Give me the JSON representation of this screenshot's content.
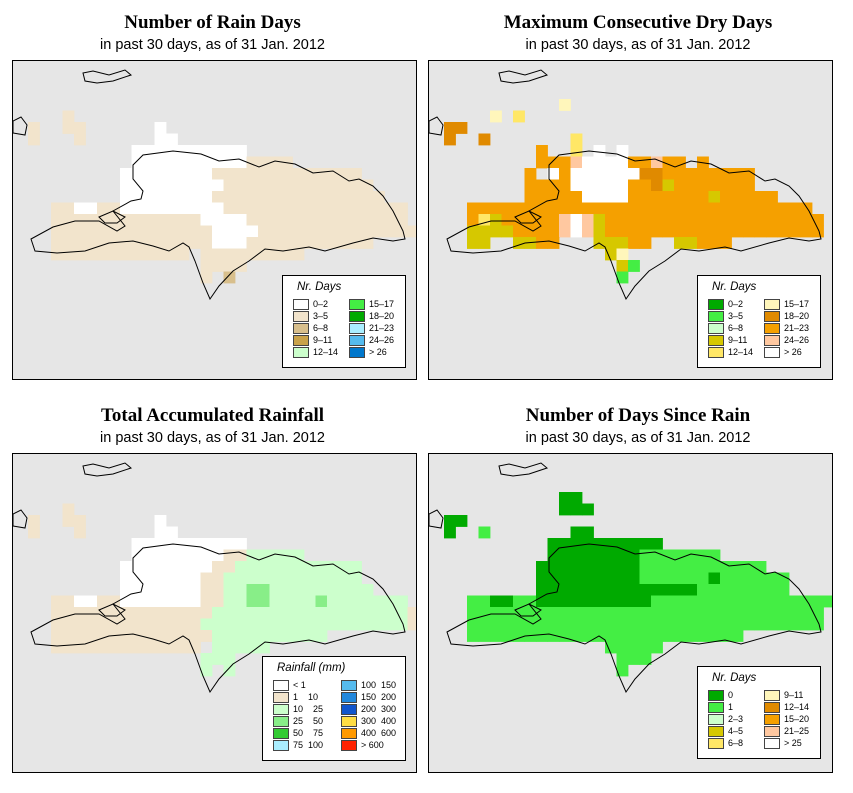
{
  "common_subtitle": "in past 30 days, as of  31 Jan. 2012",
  "panels": [
    {
      "id": "rain_days",
      "title": "Number of Rain Days",
      "subtitle": "in past 30 days, as of  31 Jan. 2012",
      "legend_title": "Nr. Days",
      "legend": [
        {
          "label": "0–2",
          "color": "#ffffff"
        },
        {
          "label": "3–5",
          "color": "#f2e4cc"
        },
        {
          "label": "6–8",
          "color": "#d8bf8c"
        },
        {
          "label": "9–11",
          "color": "#c9a24a"
        },
        {
          "label": "12–14",
          "color": "#ccffcc"
        },
        {
          "label": "15–17",
          "color": "#44ee44"
        },
        {
          "label": "18–20",
          "color": "#00aa00"
        },
        {
          "label": "21–23",
          "color": "#aaeeff"
        },
        {
          "label": "24–26",
          "color": "#55bbee"
        },
        {
          "label": "> 26",
          "color": "#0077cc"
        }
      ],
      "category_index_grid": [
        "..................................",
        "...1...............................",
        "1..11......0.......................",
        "1...1......00......................",
        ".........0000000000................",
        ".........00000000001111............",
        "........000000001111111111111......",
        "........0000000001111111111111.....",
        "........00000000111111111111111....",
        "..1100110000000001111111111111111..",
        "..1111111111111000011111111111111..",
        "..11111111111111000011111111111111.",
        "..1111111111111100011111111111.....",
        "..111111111111.111111111...........",
        "...............1111................",
        "...............1.2................."
      ]
    },
    {
      "id": "max_dry_days",
      "title": "Maximum Consecutive Dry Days",
      "subtitle": "in past 30 days, as of  31 Jan. 2012",
      "legend_title": "Nr. Days",
      "legend": [
        {
          "label": "0–2",
          "color": "#00aa00"
        },
        {
          "label": "3–5",
          "color": "#44ee44"
        },
        {
          "label": "6–8",
          "color": "#ccffcc"
        },
        {
          "label": "9–11",
          "color": "#d6c800"
        },
        {
          "label": "12–14",
          "color": "#ffe766"
        },
        {
          "label": "15–17",
          "color": "#fff6bb"
        },
        {
          "label": "18–20",
          "color": "#e08a00"
        },
        {
          "label": "21–23",
          "color": "#f5a000"
        },
        {
          "label": "24–26",
          "color": "#ffc8a0"
        },
        {
          "label": "> 26",
          "color": "#ffffff"
        }
      ],
      "category_index_grid": [
        "..........5........................",
        "....5.4............................",
        "66.................................",
        "6..6.......4.......................",
        "........7..4.9.9...................",
        "........7778999977877.7.............",
        ".......7.979999996677777777.........",
        ".......77779999977637777777........",
        ".......7777799997777777377777......",
        "..777777777777777777777777777777...",
        "..7437777789837777777777777777777..",
        "..3333777789837777777777777777777..",
        "..33..3377...33377..33777..........",
        "..............35...................",
        "...............31..................",
        "...............1..................."
      ]
    },
    {
      "id": "total_rainfall",
      "title": "Total Accumulated Rainfall",
      "subtitle": "in past 30 days, as of  31 Jan. 2012",
      "legend_title": "Rainfall (mm)",
      "legend": [
        {
          "label": "< 1",
          "color": "#ffffff"
        },
        {
          "label": "1    10",
          "color": "#f2e4cc"
        },
        {
          "label": "10    25",
          "color": "#ccffcc"
        },
        {
          "label": "25    50",
          "color": "#88ee88"
        },
        {
          "label": "50    75",
          "color": "#33cc33"
        },
        {
          "label": "75  100",
          "color": "#aaeeff"
        },
        {
          "label": "100  150",
          "color": "#55bbee"
        },
        {
          "label": "150  200",
          "color": "#2288dd"
        },
        {
          "label": "200  300",
          "color": "#1155cc"
        },
        {
          "label": "300  400",
          "color": "#ffdd44"
        },
        {
          "label": "400  600",
          "color": "#ff9900"
        },
        {
          "label": "> 600",
          "color": "#ff2200"
        }
      ],
      "category_index_grid": [
        "....................................",
        "...1...............................",
        "1..11......0.......................",
        "1...1......00......................",
        ".........0000000000................",
        ".........000000001122222...........",
        "........000000001122222222222......",
        "........000000011222222222222......",
        "........0000000112233222222222.....",
        "..1100110000000112233222232222222..",
        "..11111111111111222222222222222221.",
        "..11111111111112222222222222222221.",
        "..111111111111112222222222.........",
        "..1111111111111.22222..............",
        "...............222.................",
        "...............2.2................."
      ]
    },
    {
      "id": "days_since_rain",
      "title": "Number of Days Since Rain",
      "subtitle": "in past 30 days, as of  31 Jan. 2012",
      "legend_title": "Nr. Days",
      "legend": [
        {
          "label": "0",
          "color": "#00aa00"
        },
        {
          "label": "1",
          "color": "#44ee44"
        },
        {
          "label": "2–3",
          "color": "#ccffcc"
        },
        {
          "label": "4–5",
          "color": "#d6c800"
        },
        {
          "label": "6–8",
          "color": "#ffe766"
        },
        {
          "label": "9–11",
          "color": "#fff6bb"
        },
        {
          "label": "12–14",
          "color": "#e08a00"
        },
        {
          "label": "15–20",
          "color": "#f5a000"
        },
        {
          "label": "21–25",
          "color": "#ffc8a0"
        },
        {
          "label": "> 25",
          "color": "#ffffff"
        }
      ],
      "category_index_grid": [
        "..........00.......................",
        "..........000......................",
        "00.................................",
        "0..1.......00......................",
        ".........0000000000................",
        ".........000000001111111...........",
        "........00000000011111111111.......",
        "........0000000001111110111111.....",
        "........0000000000000011111111.....",
        "..11001100000000001111111111111111.",
        "..1111111111111111111111111111111..",
        "..1111111111111111111111111111111..",
        "..111111111111111111111111.........",
        "..............11111................",
        "...............111.................",
        "...............1..................."
      ]
    }
  ]
}
